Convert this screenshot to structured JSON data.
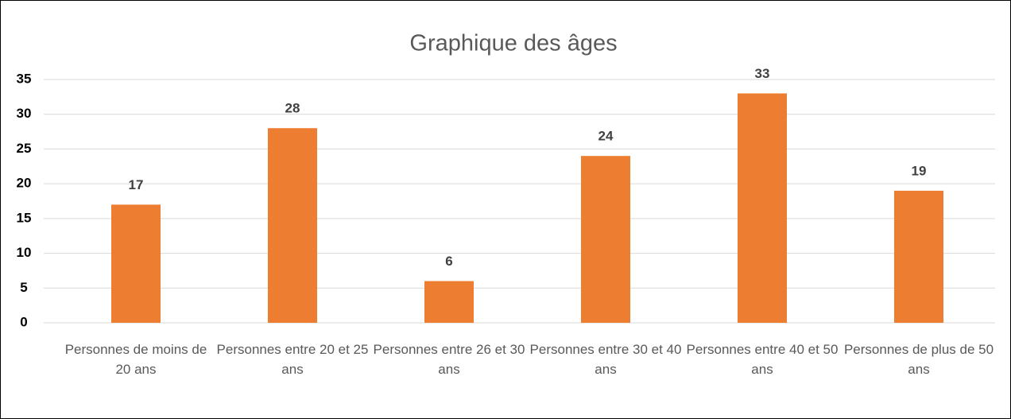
{
  "chart_data": {
    "type": "bar",
    "title": "Graphique des âges",
    "categories": [
      "Personnes de moins de 20 ans",
      "Personnes entre 20 et 25 ans",
      "Personnes entre 26 et 30 ans",
      "Personnes entre 30 et 40 ans",
      "Personnes entre 40 et 50 ans",
      "Personnes de plus de 50 ans"
    ],
    "values": [
      17,
      28,
      6,
      24,
      33,
      19
    ],
    "color": "#ed7d31",
    "ylim": [
      0,
      35
    ],
    "yticks": [
      0,
      5,
      10,
      15,
      20,
      25,
      30,
      35
    ],
    "grid": true
  }
}
